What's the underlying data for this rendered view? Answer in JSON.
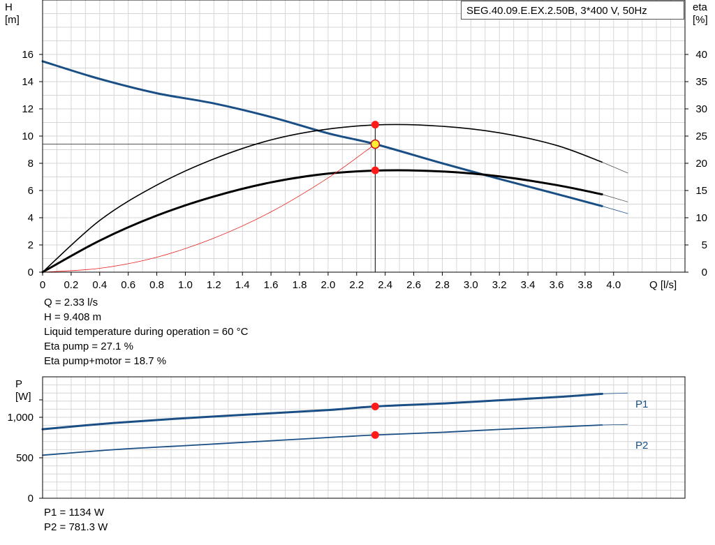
{
  "title": "SEG.40.09.E.EX.2.50B, 3*400 V, 50Hz",
  "colors": {
    "head": "#1a4f86",
    "eta": "#000000",
    "system": "#e8201c",
    "duty": "#ff1a1a",
    "duty_point": "#ffee33",
    "grid": "#d6d6d6"
  },
  "readouts_top": {
    "q": "Q = 2.33 l/s",
    "h": "H = 9.408 m",
    "temp": "Liquid temperature during operation = 60 °C",
    "eta_pump": "Eta pump = 27.1 %",
    "eta_total": "Eta pump+motor = 18.7 %"
  },
  "readouts_bottom": {
    "p1": "P1 = 1134 W",
    "p2": "P2 = 781.3 W"
  },
  "chart_data": [
    {
      "type": "line",
      "title": "SEG.40.09.E.EX.2.50B, 3*400 V, 50Hz",
      "xlabel": "Q [l/s]",
      "ylabel": "H\n[m]",
      "y2label": "eta\n[%]",
      "xlim": [
        0,
        4.5
      ],
      "ylim": [
        0,
        20
      ],
      "y2lim": [
        0,
        50
      ],
      "xticks": [
        "0",
        "0.2",
        "0.4",
        "0.6",
        "0.8",
        "1.0",
        "1.2",
        "1.4",
        "1.6",
        "1.8",
        "2.0",
        "2.2",
        "2.4",
        "2.6",
        "2.8",
        "3.0",
        "3.2",
        "3.4",
        "3.6",
        "3.8",
        "4.0"
      ],
      "yticks": [
        "0",
        "2",
        "4",
        "6",
        "8",
        "10",
        "12",
        "14",
        "16"
      ],
      "y2ticks": [
        "0",
        "5",
        "10",
        "15",
        "20",
        "25",
        "30",
        "35",
        "40"
      ],
      "grid": true,
      "series": [
        {
          "key": "head",
          "axis": "left",
          "color": "#1a4f86",
          "width": 3,
          "x": [
            0,
            0.4,
            0.8,
            1.2,
            1.6,
            2.0,
            2.33,
            2.8,
            3.2,
            3.6,
            3.92
          ],
          "y": [
            15.5,
            14.2,
            13.15,
            12.4,
            11.4,
            10.2,
            9.408,
            8.0,
            6.85,
            5.75,
            4.85
          ],
          "ext_x": [
            3.92,
            4.1
          ],
          "ext_y": [
            4.85,
            4.3
          ]
        },
        {
          "key": "eta_pump",
          "axis": "right",
          "color": "#000000",
          "width": 1.6,
          "x": [
            0,
            0.4,
            0.8,
            1.2,
            1.6,
            2.0,
            2.4,
            2.8,
            3.2,
            3.6,
            3.92
          ],
          "y": [
            0,
            9.5,
            16.0,
            20.8,
            24.3,
            26.3,
            27.1,
            26.8,
            25.6,
            23.3,
            20.2
          ],
          "ext_x": [
            3.92,
            4.1
          ],
          "ext_y": [
            20.2,
            18.2
          ]
        },
        {
          "key": "eta_total",
          "axis": "right",
          "color": "#000000",
          "width": 3,
          "x": [
            0,
            0.4,
            0.8,
            1.2,
            1.6,
            2.0,
            2.4,
            2.8,
            3.2,
            3.6,
            3.92
          ],
          "y": [
            0,
            5.8,
            10.4,
            13.9,
            16.5,
            18.1,
            18.7,
            18.5,
            17.6,
            16.0,
            14.3
          ],
          "ext_x": [
            3.92,
            4.1
          ],
          "ext_y": [
            14.3,
            12.9
          ]
        },
        {
          "key": "system",
          "axis": "left",
          "color": "#e8201c",
          "width": 0.8,
          "x": [
            0,
            0.4,
            0.8,
            1.2,
            1.6,
            2.0,
            2.33
          ],
          "y": [
            0,
            0.28,
            1.1,
            2.5,
            4.43,
            6.93,
            9.408
          ]
        }
      ],
      "points": [
        {
          "key": "eta_pump_pt",
          "axis": "right",
          "x": 2.33,
          "y": 27.1,
          "color": "#ff1a1a"
        },
        {
          "key": "eta_total_pt",
          "axis": "right",
          "x": 2.33,
          "y": 18.7,
          "color": "#ff1a1a"
        },
        {
          "key": "duty_point",
          "axis": "left",
          "x": 2.33,
          "y": 9.408,
          "color": "#ffee33"
        }
      ]
    },
    {
      "type": "line",
      "ylabel": "P\n[W]",
      "xlim": [
        0,
        4.5
      ],
      "ylim": [
        0,
        1500
      ],
      "yticks": [
        "0",
        "500",
        "1,000"
      ],
      "grid": true,
      "series": [
        {
          "key": "p1",
          "name": "P1",
          "color": "#1a4f86",
          "width": 3,
          "x": [
            0,
            0.5,
            1.0,
            1.5,
            2.0,
            2.33,
            2.8,
            3.2,
            3.6,
            3.92
          ],
          "y": [
            853,
            930,
            990,
            1040,
            1090,
            1134,
            1170,
            1210,
            1250,
            1290
          ],
          "ext_x": [
            3.92,
            4.1
          ],
          "ext_y": [
            1290,
            1300
          ]
        },
        {
          "key": "p2",
          "name": "P2",
          "color": "#1a4f86",
          "width": 1.8,
          "x": [
            0,
            0.5,
            1.0,
            1.5,
            2.0,
            2.33,
            2.8,
            3.2,
            3.6,
            3.92
          ],
          "y": [
            532,
            600,
            650,
            700,
            750,
            781.3,
            815,
            850,
            880,
            905
          ],
          "ext_x": [
            3.92,
            4.1
          ],
          "ext_y": [
            905,
            912
          ]
        }
      ],
      "points": [
        {
          "key": "p1_pt",
          "x": 2.33,
          "y": 1134,
          "color": "#ff1a1a"
        },
        {
          "key": "p2_pt",
          "x": 2.33,
          "y": 781.3,
          "color": "#ff1a1a"
        }
      ]
    }
  ]
}
